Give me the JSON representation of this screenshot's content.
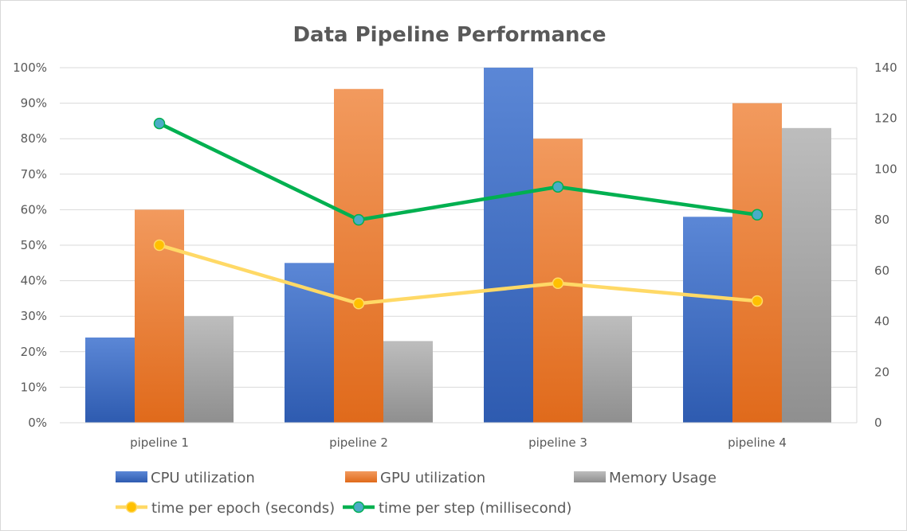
{
  "chart_data": {
    "type": "bar",
    "title": "Data Pipeline Performance",
    "categories": [
      "pipeline 1",
      "pipeline 2",
      "pipeline 3",
      "pipeline 4"
    ],
    "y_axis_left": {
      "min": 0,
      "max": 100,
      "ticks": [
        0,
        10,
        20,
        30,
        40,
        50,
        60,
        70,
        80,
        90,
        100
      ],
      "tick_labels": [
        "0%",
        "10%",
        "20%",
        "30%",
        "40%",
        "50%",
        "60%",
        "70%",
        "80%",
        "90%",
        "100%"
      ]
    },
    "y_axis_right": {
      "min": 0,
      "max": 140,
      "ticks": [
        0,
        20,
        40,
        60,
        80,
        100,
        120,
        140
      ],
      "tick_labels": [
        "0",
        "20",
        "40",
        "60",
        "80",
        "100",
        "120",
        "140"
      ]
    },
    "grid": true,
    "legend_position": "bottom",
    "series": [
      {
        "name": "CPU utilization",
        "type": "bar",
        "axis": "left",
        "color": "#4472c4",
        "values": [
          24,
          45,
          100,
          58
        ]
      },
      {
        "name": "GPU utilization",
        "type": "bar",
        "axis": "left",
        "color": "#ed7d31",
        "values": [
          60,
          94,
          80,
          90
        ]
      },
      {
        "name": "Memory Usage",
        "type": "bar",
        "axis": "left",
        "color": "#a5a5a5",
        "values": [
          30,
          23,
          30,
          83
        ]
      },
      {
        "name": "time per epoch (seconds)",
        "type": "line",
        "axis": "right",
        "color": "#ffd966",
        "marker_color": "#ffc000",
        "values": [
          70,
          47,
          55,
          48
        ]
      },
      {
        "name": "time per step (millisecond)",
        "type": "line",
        "axis": "right",
        "color": "#00b050",
        "marker_color": "#4bacc6",
        "values": [
          118,
          80,
          93,
          82
        ]
      }
    ]
  }
}
